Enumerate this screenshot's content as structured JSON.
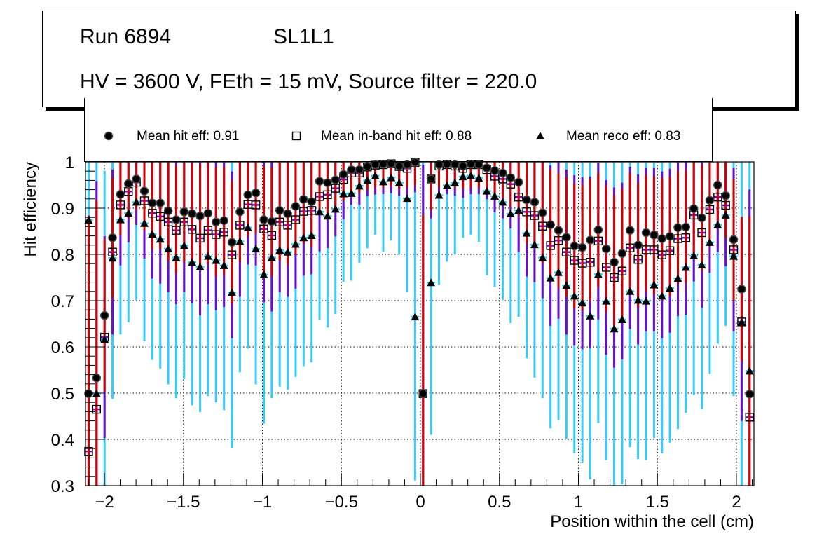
{
  "header": {
    "run": "Run 6894",
    "layer": "SL1L1",
    "conditions": "HV = 3600 V, FEth = 15 mV, Source filter = 220.0"
  },
  "legend": [
    {
      "label": "Mean hit  eff: 0.91",
      "marker": "circle"
    },
    {
      "label": "Mean in-band hit eff: 0.88",
      "marker": "open-square"
    },
    {
      "label": "Mean reco eff: 0.83",
      "marker": "triangle"
    }
  ],
  "chart_data": {
    "type": "scatter",
    "title": "",
    "xlabel": "Position within the cell (cm)",
    "ylabel": "Hit efficiency",
    "xlim": [
      -2.12,
      2.11
    ],
    "ylim": [
      0.3,
      1.0
    ],
    "grid": true,
    "legend_position": "top",
    "xticks": [
      -2,
      -1.5,
      -1,
      -0.5,
      0,
      0.5,
      1,
      1.5,
      2
    ],
    "xtick_labels": [
      "−2",
      "−1.5",
      "−1",
      "−0.5",
      "0",
      "0.5",
      "1",
      "1.5",
      "2"
    ],
    "yticks": [
      0.3,
      0.4,
      0.5,
      0.6,
      0.7,
      0.8,
      0.9,
      1.0
    ],
    "ytick_labels": [
      "0.3",
      "0.4",
      "0.5",
      "0.6",
      "0.7",
      "0.8",
      "0.9",
      "1"
    ],
    "x_start": -2.1,
    "x_step": 0.0504,
    "series": [
      {
        "name": "Mean hit  eff: 0.91",
        "marker": "circle",
        "error_color": "#d40000",
        "values": [
          0.499,
          0.533,
          0.668,
          0.836,
          0.93,
          0.953,
          0.963,
          0.937,
          0.911,
          0.911,
          0.894,
          0.875,
          0.892,
          0.888,
          0.883,
          0.889,
          0.87,
          0.873,
          0.826,
          0.892,
          0.929,
          0.933,
          0.875,
          0.871,
          0.895,
          0.888,
          0.904,
          0.919,
          0.914,
          0.958,
          0.955,
          0.961,
          0.973,
          0.983,
          0.983,
          0.99,
          0.994,
          0.995,
          0.996,
          0.991,
          0.994,
          0.999,
          0.499,
          0.963,
          0.994,
          0.995,
          0.994,
          0.991,
          0.995,
          0.994,
          0.987,
          0.981,
          0.976,
          0.966,
          0.956,
          0.918,
          0.913,
          0.89,
          0.864,
          0.852,
          0.837,
          0.818,
          0.815,
          0.831,
          0.853,
          0.812,
          0.783,
          0.802,
          0.852,
          0.82,
          0.847,
          0.842,
          0.834,
          0.839,
          0.858,
          0.859,
          0.899,
          0.879,
          0.917,
          0.95,
          0.927,
          0.832,
          0.725,
          0.498
        ]
      },
      {
        "name": "Mean in-band hit eff: 0.88",
        "marker": "open-square",
        "error_color": "#6a0dd0",
        "values": [
          0.374,
          0.465,
          0.621,
          0.805,
          0.907,
          0.936,
          0.956,
          0.916,
          0.889,
          0.882,
          0.87,
          0.852,
          0.87,
          0.854,
          0.835,
          0.852,
          0.843,
          0.848,
          0.799,
          0.863,
          0.908,
          0.907,
          0.855,
          0.841,
          0.87,
          0.863,
          0.875,
          0.893,
          0.895,
          0.925,
          0.929,
          0.943,
          0.962,
          0.976,
          0.976,
          0.989,
          0.993,
          0.994,
          0.996,
          0.99,
          0.986,
          0.998,
          0.499,
          0.963,
          0.991,
          0.994,
          0.991,
          0.986,
          0.994,
          0.994,
          0.983,
          0.969,
          0.963,
          0.952,
          0.924,
          0.892,
          0.884,
          0.861,
          0.819,
          0.83,
          0.805,
          0.787,
          0.781,
          0.783,
          0.829,
          0.772,
          0.75,
          0.764,
          0.814,
          0.789,
          0.81,
          0.81,
          0.799,
          0.808,
          0.834,
          0.836,
          0.885,
          0.847,
          0.897,
          0.924,
          0.906,
          0.81,
          0.654,
          0.448
        ]
      },
      {
        "name": "Mean reco eff: 0.83",
        "marker": "triangle",
        "error_color": "#33ccff",
        "values": [
          0.874,
          0.499,
          0.616,
          0.792,
          0.875,
          0.889,
          0.913,
          0.867,
          0.844,
          0.833,
          0.812,
          0.793,
          0.819,
          0.783,
          0.773,
          0.796,
          0.787,
          0.776,
          0.718,
          0.828,
          0.858,
          0.812,
          0.756,
          0.793,
          0.809,
          0.805,
          0.822,
          0.836,
          0.841,
          0.892,
          0.883,
          0.898,
          0.931,
          0.932,
          0.948,
          0.96,
          0.97,
          0.957,
          0.966,
          0.955,
          0.921,
          0.665,
          0.499,
          0.739,
          0.928,
          0.949,
          0.955,
          0.968,
          0.97,
          0.965,
          0.937,
          0.926,
          0.913,
          0.888,
          0.895,
          0.846,
          0.821,
          0.793,
          0.749,
          0.761,
          0.733,
          0.71,
          0.695,
          0.667,
          0.757,
          0.699,
          0.639,
          0.659,
          0.72,
          0.701,
          0.699,
          0.734,
          0.71,
          0.727,
          0.748,
          0.772,
          0.797,
          0.777,
          0.826,
          0.864,
          0.885,
          0.796,
          0.653,
          0.548
        ]
      }
    ]
  }
}
